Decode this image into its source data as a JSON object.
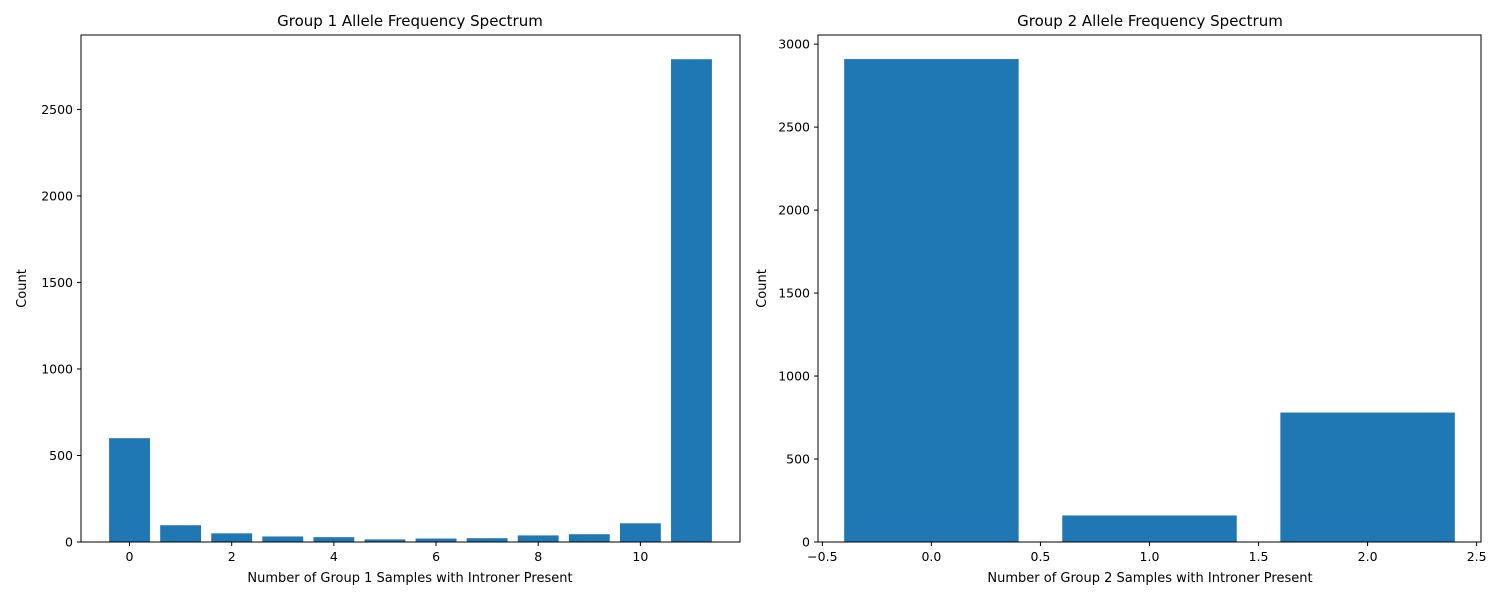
{
  "chart_data": [
    {
      "type": "bar",
      "title": "Group 1 Allele Frequency Spectrum",
      "xlabel": "Number of Group 1 Samples with Introner Present",
      "ylabel": "Count",
      "categories": [
        0,
        1,
        2,
        3,
        4,
        5,
        6,
        7,
        8,
        9,
        10,
        11
      ],
      "values": [
        600,
        97,
        50,
        32,
        28,
        15,
        20,
        22,
        38,
        45,
        108,
        2790
      ],
      "xlim": [
        -0.95,
        11.95
      ],
      "ylim": [
        0,
        2930
      ],
      "xticks": [
        0,
        2,
        4,
        6,
        8,
        10
      ],
      "xtick_labels": [
        "0",
        "2",
        "4",
        "6",
        "8",
        "10"
      ],
      "yticks": [
        0,
        500,
        1000,
        1500,
        2000,
        2500
      ],
      "ytick_labels": [
        "0",
        "500",
        "1000",
        "1500",
        "2000",
        "2500"
      ],
      "bar_width": 0.8,
      "color": "#1f77b4",
      "grid": false,
      "legend": "none"
    },
    {
      "type": "bar",
      "title": "Group 2 Allele Frequency Spectrum",
      "xlabel": "Number of Group 2 Samples with Introner Present",
      "ylabel": "Count",
      "categories": [
        0,
        1,
        2
      ],
      "values": [
        2910,
        160,
        780
      ],
      "xlim": [
        -0.52,
        2.52
      ],
      "ylim": [
        0,
        3055
      ],
      "xticks": [
        -0.5,
        0,
        0.5,
        1,
        1.5,
        2,
        2.5
      ],
      "xtick_labels": [
        "−0.5",
        "0.0",
        "0.5",
        "1.0",
        "1.5",
        "2.0",
        "2.5"
      ],
      "yticks": [
        0,
        500,
        1000,
        1500,
        2000,
        2500,
        3000
      ],
      "ytick_labels": [
        "0",
        "500",
        "1000",
        "1500",
        "2000",
        "2500",
        "3000"
      ],
      "bar_width": 0.8,
      "color": "#1f77b4",
      "grid": false,
      "legend": "none"
    }
  ]
}
